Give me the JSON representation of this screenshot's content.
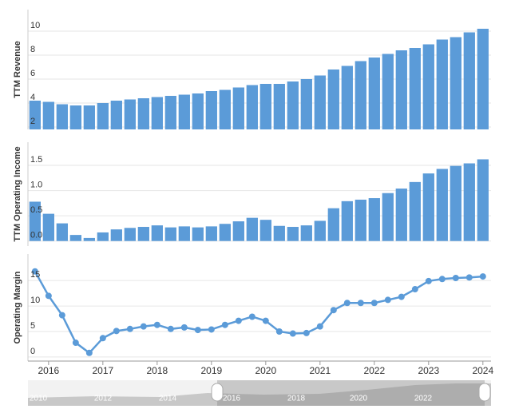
{
  "chart_data": [
    {
      "type": "bar",
      "y_label": "TTM Revenue",
      "color": "#5b9bd8",
      "x": [
        2015.75,
        2016,
        2016.25,
        2016.5,
        2016.75,
        2017,
        2017.25,
        2017.5,
        2017.75,
        2018,
        2018.25,
        2018.5,
        2018.75,
        2019,
        2019.25,
        2019.5,
        2019.75,
        2020,
        2020.25,
        2020.5,
        2020.75,
        2021,
        2021.25,
        2021.5,
        2021.75,
        2022,
        2022.25,
        2022.5,
        2022.75,
        2023,
        2023.25,
        2023.5,
        2023.75,
        2024
      ],
      "values": [
        4.2,
        4.1,
        3.9,
        3.8,
        3.8,
        4.0,
        4.2,
        4.3,
        4.4,
        4.5,
        4.6,
        4.7,
        4.8,
        5.0,
        5.1,
        5.3,
        5.5,
        5.6,
        5.6,
        5.8,
        6.0,
        6.3,
        6.8,
        7.1,
        7.5,
        7.8,
        8.1,
        8.4,
        8.6,
        8.9,
        9.3,
        9.5,
        9.9,
        10.2
      ],
      "xlim": [
        2015.62,
        2024.15
      ],
      "ylim": [
        1.8,
        11.8
      ],
      "yticks": [
        2,
        4,
        6,
        8,
        10
      ],
      "grid": true
    },
    {
      "type": "bar",
      "y_label": "TTM Operating Income",
      "color": "#5b9bd8",
      "x": [
        2015.75,
        2016,
        2016.25,
        2016.5,
        2016.75,
        2017,
        2017.25,
        2017.5,
        2017.75,
        2018,
        2018.25,
        2018.5,
        2018.75,
        2019,
        2019.25,
        2019.5,
        2019.75,
        2020,
        2020.25,
        2020.5,
        2020.75,
        2021,
        2021.25,
        2021.5,
        2021.75,
        2022,
        2022.25,
        2022.5,
        2022.75,
        2023,
        2023.25,
        2023.5,
        2023.75,
        2024
      ],
      "values": [
        0.78,
        0.54,
        0.35,
        0.12,
        0.06,
        0.17,
        0.23,
        0.26,
        0.28,
        0.31,
        0.27,
        0.29,
        0.27,
        0.29,
        0.34,
        0.39,
        0.46,
        0.42,
        0.3,
        0.28,
        0.31,
        0.4,
        0.65,
        0.79,
        0.82,
        0.85,
        0.95,
        1.04,
        1.17,
        1.34,
        1.43,
        1.49,
        1.54,
        1.62
      ],
      "xlim": [
        2015.62,
        2024.15
      ],
      "ylim": [
        -0.1,
        1.96
      ],
      "yticks": [
        {
          "value": 0,
          "label": "0.0"
        },
        {
          "value": 0.5,
          "label": "0.5"
        },
        {
          "value": 1,
          "label": "1.0"
        },
        {
          "value": 1.5,
          "label": "1.5"
        }
      ],
      "grid": true
    },
    {
      "type": "line",
      "y_label": "Operating Margin",
      "color": "#5b9bd8",
      "x": [
        2015.75,
        2016,
        2016.25,
        2016.5,
        2016.75,
        2017,
        2017.25,
        2017.5,
        2017.75,
        2018,
        2018.25,
        2018.5,
        2018.75,
        2019,
        2019.25,
        2019.5,
        2019.75,
        2020,
        2020.25,
        2020.5,
        2020.75,
        2021,
        2021.25,
        2021.5,
        2021.75,
        2022,
        2022.25,
        2022.5,
        2022.75,
        2023,
        2023.25,
        2023.5,
        2023.75,
        2024
      ],
      "values": [
        16.8,
        12.0,
        8.2,
        2.8,
        0.8,
        3.7,
        5.1,
        5.5,
        6.0,
        6.3,
        5.5,
        5.8,
        5.3,
        5.4,
        6.3,
        7.1,
        7.9,
        7.1,
        5.0,
        4.6,
        4.7,
        6.0,
        9.2,
        10.6,
        10.6,
        10.6,
        11.2,
        11.8,
        13.3,
        14.9,
        15.3,
        15.5,
        15.6,
        15.8
      ],
      "xlim": [
        2015.62,
        2024.15
      ],
      "ylim": [
        -0.8,
        20.2
      ],
      "yticks": [
        0,
        5,
        10,
        15
      ],
      "grid": true,
      "xticks": [
        2016,
        2017,
        2018,
        2019,
        2020,
        2021,
        2022,
        2023,
        2024
      ]
    }
  ],
  "navigator": {
    "year_labels": [
      "2010",
      "2012",
      "2014",
      "2016",
      "2018",
      "2020",
      "2022"
    ]
  }
}
